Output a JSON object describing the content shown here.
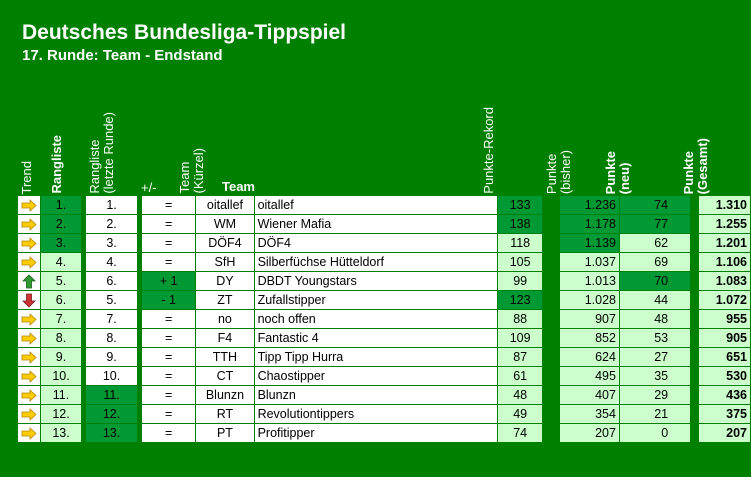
{
  "title": "Deutsches Bundesliga-Tippspiel",
  "subtitle": "17. Runde: Team - Endstand",
  "headers": {
    "trend": "Trend",
    "rangliste": "Rangliste",
    "rangliste_letzte_1": "Rangliste",
    "rangliste_letzte_2": "(letzte Runde)",
    "plusminus": "+/-",
    "team_kuerzel_1": "Team",
    "team_kuerzel_2": "(Kürzel)",
    "team": "Team",
    "rekord": "Punkte-Rekord",
    "bisher_1": "Punkte",
    "bisher_2": "(bisher)",
    "neu_1": "Punkte",
    "neu_2": "(neu)",
    "gesamt_1": "Punkte",
    "gesamt_2": "(Gesamt)"
  },
  "colors": {
    "background": "#008000",
    "light_green": "#ccffcc",
    "dark_green": "#009933",
    "mid_green": "#33cc66",
    "arrow_same": "#ffcc00",
    "arrow_up": "#339933",
    "arrow_down": "#cc3333"
  },
  "rows": [
    {
      "trend": "right-arrow-icon",
      "rank": "1.",
      "prev": "1.",
      "diff": "=",
      "abbr": "oitallef",
      "team": "oitallef",
      "rekord": "133",
      "bisher": "1.236",
      "neu": "74",
      "gesamt": "1.310",
      "hl_rank": true,
      "hl_prev": false,
      "hl_diff": false,
      "hl_rekord": true,
      "hl_bisher": true,
      "hl_neu": true
    },
    {
      "trend": "right-arrow-icon",
      "rank": "2.",
      "prev": "2.",
      "diff": "=",
      "abbr": "WM",
      "team": "Wiener Mafia",
      "rekord": "138",
      "bisher": "1.178",
      "neu": "77",
      "gesamt": "1.255",
      "hl_rank": true,
      "hl_prev": false,
      "hl_diff": false,
      "hl_rekord": true,
      "hl_bisher": true,
      "hl_neu": true
    },
    {
      "trend": "right-arrow-icon",
      "rank": "3.",
      "prev": "3.",
      "diff": "=",
      "abbr": "DÖF4",
      "team": "DÖF4",
      "rekord": "118",
      "bisher": "1.139",
      "neu": "62",
      "gesamt": "1.201",
      "hl_rank": true,
      "hl_prev": false,
      "hl_diff": false,
      "hl_rekord": false,
      "hl_bisher": true,
      "hl_neu": false
    },
    {
      "trend": "right-arrow-icon",
      "rank": "4.",
      "prev": "4.",
      "diff": "=",
      "abbr": "SfH",
      "team": "Silberfüchse Hütteldorf",
      "rekord": "105",
      "bisher": "1.037",
      "neu": "69",
      "gesamt": "1.106",
      "hl_rank": false,
      "hl_prev": false,
      "hl_diff": false,
      "hl_rekord": false,
      "hl_bisher": false,
      "hl_neu": false
    },
    {
      "trend": "up-arrow-icon",
      "rank": "5.",
      "prev": "6.",
      "diff": "+ 1",
      "abbr": "DY",
      "team": "DBDT Youngstars",
      "rekord": "99",
      "bisher": "1.013",
      "neu": "70",
      "gesamt": "1.083",
      "hl_rank": false,
      "hl_prev": false,
      "hl_diff": true,
      "hl_rekord": false,
      "hl_bisher": false,
      "hl_neu": true
    },
    {
      "trend": "down-arrow-icon",
      "rank": "6.",
      "prev": "5.",
      "diff": "- 1",
      "abbr": "ZT",
      "team": "Zufallstipper",
      "rekord": "123",
      "bisher": "1.028",
      "neu": "44",
      "gesamt": "1.072",
      "hl_rank": false,
      "hl_prev": false,
      "hl_diff": true,
      "hl_rekord": true,
      "hl_bisher": false,
      "hl_neu": false
    },
    {
      "trend": "right-arrow-icon",
      "rank": "7.",
      "prev": "7.",
      "diff": "=",
      "abbr": "no",
      "team": "noch offen",
      "rekord": "88",
      "bisher": "907",
      "neu": "48",
      "gesamt": "955",
      "hl_rank": false,
      "hl_prev": false,
      "hl_diff": false,
      "hl_rekord": false,
      "hl_bisher": false,
      "hl_neu": false
    },
    {
      "trend": "right-arrow-icon",
      "rank": "8.",
      "prev": "8.",
      "diff": "=",
      "abbr": "F4",
      "team": "Fantastic 4",
      "rekord": "109",
      "bisher": "852",
      "neu": "53",
      "gesamt": "905",
      "hl_rank": false,
      "hl_prev": false,
      "hl_diff": false,
      "hl_rekord": false,
      "hl_bisher": false,
      "hl_neu": false
    },
    {
      "trend": "right-arrow-icon",
      "rank": "9.",
      "prev": "9.",
      "diff": "=",
      "abbr": "TTH",
      "team": "Tipp Tipp Hurra",
      "rekord": "87",
      "bisher": "624",
      "neu": "27",
      "gesamt": "651",
      "hl_rank": false,
      "hl_prev": false,
      "hl_diff": false,
      "hl_rekord": false,
      "hl_bisher": false,
      "hl_neu": false
    },
    {
      "trend": "right-arrow-icon",
      "rank": "10.",
      "prev": "10.",
      "diff": "=",
      "abbr": "CT",
      "team": "Chaostipper",
      "rekord": "61",
      "bisher": "495",
      "neu": "35",
      "gesamt": "530",
      "hl_rank": false,
      "hl_prev": false,
      "hl_diff": false,
      "hl_rekord": false,
      "hl_bisher": false,
      "hl_neu": false
    },
    {
      "trend": "right-arrow-icon",
      "rank": "11.",
      "prev": "11.",
      "diff": "=",
      "abbr": "Blunzn",
      "team": "Blunzn",
      "rekord": "48",
      "bisher": "407",
      "neu": "29",
      "gesamt": "436",
      "hl_rank": false,
      "hl_prev": true,
      "hl_diff": false,
      "hl_rekord": false,
      "hl_bisher": false,
      "hl_neu": false
    },
    {
      "trend": "right-arrow-icon",
      "rank": "12.",
      "prev": "12.",
      "diff": "=",
      "abbr": "RT",
      "team": "Revolutiontippers",
      "rekord": "49",
      "bisher": "354",
      "neu": "21",
      "gesamt": "375",
      "hl_rank": false,
      "hl_prev": true,
      "hl_diff": false,
      "hl_rekord": false,
      "hl_bisher": false,
      "hl_neu": false
    },
    {
      "trend": "right-arrow-icon",
      "rank": "13.",
      "prev": "13.",
      "diff": "=",
      "abbr": "PT",
      "team": "Profitipper",
      "rekord": "74",
      "bisher": "207",
      "neu": "0",
      "gesamt": "207",
      "hl_rank": false,
      "hl_prev": true,
      "hl_diff": false,
      "hl_rekord": false,
      "hl_bisher": false,
      "hl_neu": false
    }
  ]
}
